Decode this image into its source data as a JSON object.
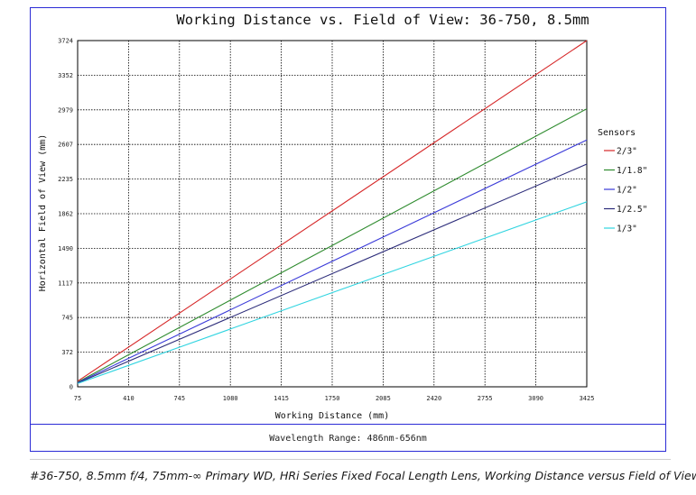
{
  "caption": "#36-750, 8.5mm f/4, 75mm-∞ Primary WD, HRi Series Fixed Focal Length Lens, Working Distance versus Field of View Plot",
  "footer": {
    "wavelength": "Wavelength Range: 486nm-656nm"
  },
  "colors": {
    "frame": "#2b2bd6"
  },
  "chart_data": {
    "type": "line",
    "title": "Working Distance vs. Field of View: 36-750, 8.5mm",
    "xlabel": "Working Distance (mm)",
    "ylabel": "Horizontal Field of View (mm)",
    "xlim": [
      75,
      3425
    ],
    "ylim": [
      0,
      3724
    ],
    "x_ticks": [
      "75",
      "410",
      "745",
      "1080",
      "1415",
      "1750",
      "2085",
      "2420",
      "2755",
      "3090",
      "3425"
    ],
    "y_ticks": [
      "0",
      "372",
      "745",
      "1117",
      "1490",
      "1862",
      "2235",
      "2607",
      "2979",
      "3352",
      "3724"
    ],
    "grid": true,
    "legend_title": "Sensors",
    "legend_position": "right",
    "series": [
      {
        "name": "2/3\"",
        "color": "#d62728",
        "x": [
          75,
          3425
        ],
        "y": [
          60,
          3724
        ]
      },
      {
        "name": "1/1.8\"",
        "color": "#2e8b2e",
        "x": [
          75,
          3425
        ],
        "y": [
          50,
          2990
        ]
      },
      {
        "name": "1/2\"",
        "color": "#3a3ad8",
        "x": [
          75,
          3425
        ],
        "y": [
          45,
          2655
        ]
      },
      {
        "name": "1/2.5\"",
        "color": "#2c2c7a",
        "x": [
          75,
          3425
        ],
        "y": [
          40,
          2395
        ]
      },
      {
        "name": "1/3\"",
        "color": "#2fd4e0",
        "x": [
          75,
          3425
        ],
        "y": [
          35,
          1990
        ]
      }
    ]
  }
}
